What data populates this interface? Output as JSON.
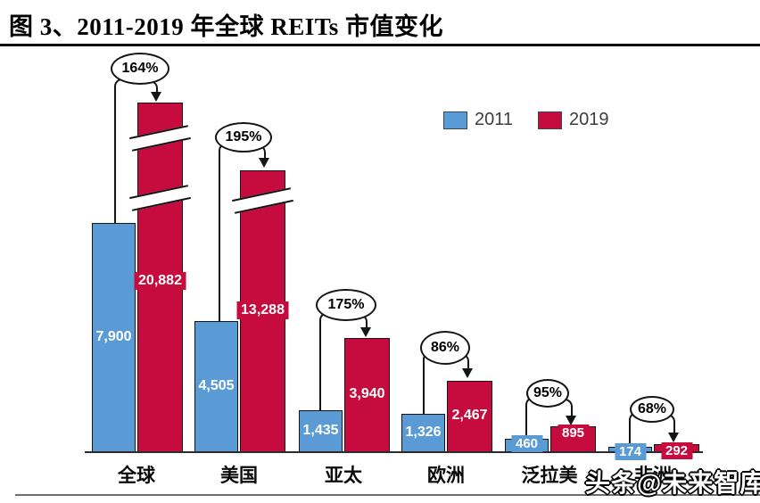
{
  "title": "图 3、2011-2019 年全球 REITs 市值变化",
  "watermark": "头条@未来智库",
  "legend": {
    "items": [
      {
        "label": "2011",
        "color": "#5B9BD5"
      },
      {
        "label": "2019",
        "color": "#C60C3E"
      }
    ]
  },
  "chart_data": {
    "type": "bar",
    "title": "2011-2019 年全球 REITs 市值变化",
    "categories": [
      "全球",
      "美国",
      "亚太",
      "欧洲",
      "泛拉美",
      "非洲"
    ],
    "series": [
      {
        "name": "2011",
        "color": "#5B9BD5",
        "values": [
          7900,
          4505,
          1435,
          1326,
          460,
          174
        ],
        "value_labels": [
          "7,900",
          "4,505",
          "1,435",
          "1,326",
          "460",
          "174"
        ]
      },
      {
        "name": "2019",
        "color": "#C60C3E",
        "values": [
          20882,
          13288,
          3940,
          2467,
          895,
          292
        ],
        "value_labels": [
          "20,882",
          "13,288",
          "3,940",
          "2,467",
          "895",
          "292"
        ]
      }
    ],
    "growth_labels": [
      "164%",
      "195%",
      "175%",
      "86%",
      "95%",
      "68%"
    ],
    "legend_position": "top-center-right",
    "y_axis": "hidden",
    "grid": "off",
    "baseline_visible": true,
    "axis_breaks": {
      "series": "2019",
      "breaks_per_category": {
        "全球": 2,
        "美国": 1
      }
    },
    "note_visual": "2019 bars for 全球 and 美国 are truncated with white break marks; growth % shown in ovals with arrows"
  }
}
